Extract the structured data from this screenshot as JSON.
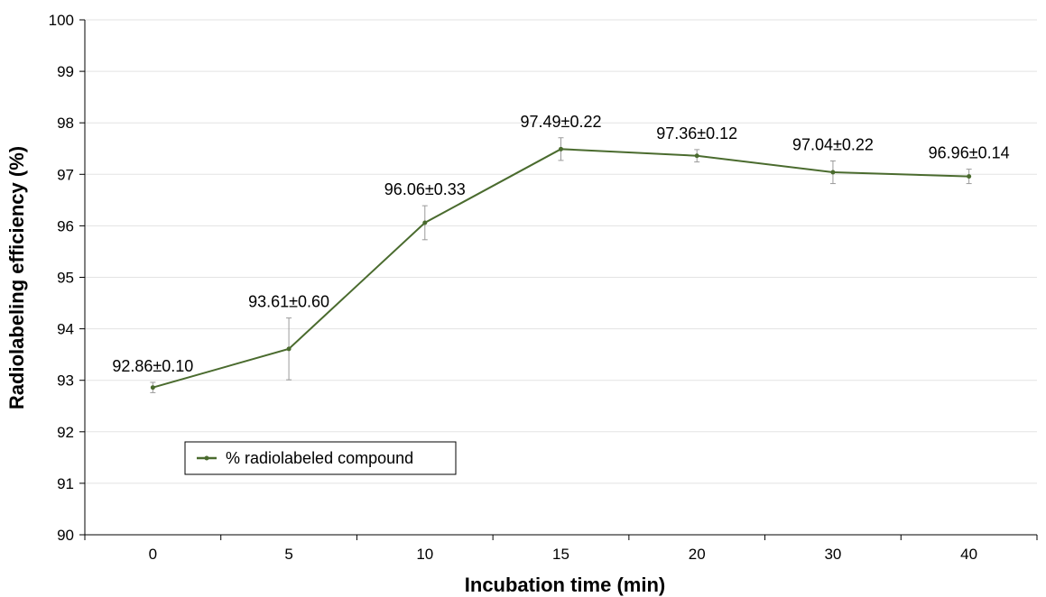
{
  "chart_data": {
    "type": "line",
    "title": "",
    "xlabel": "Incubation time (min)",
    "ylabel": "Radiolabeling efficiency (%)",
    "categories": [
      "0",
      "5",
      "10",
      "15",
      "20",
      "30",
      "40"
    ],
    "ylim": [
      90,
      100
    ],
    "yticks": [
      "90",
      "91",
      "92",
      "93",
      "94",
      "95",
      "96",
      "97",
      "98",
      "99",
      "100"
    ],
    "grid": true,
    "legend_position": "bottom-left",
    "series": [
      {
        "name": "% radiolabeled compound",
        "color": "#4a6b2e",
        "values": [
          92.86,
          93.61,
          96.06,
          97.49,
          97.36,
          97.04,
          96.96
        ],
        "errors": [
          0.1,
          0.6,
          0.33,
          0.22,
          0.12,
          0.22,
          0.14
        ],
        "data_labels": [
          "92.86±0.10",
          "93.61±0.60",
          "96.06±0.33",
          "97.49±0.22",
          "97.36±0.12",
          "97.04±0.22",
          "96.96±0.14"
        ]
      }
    ]
  }
}
